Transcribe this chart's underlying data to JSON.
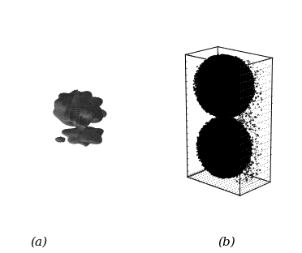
{
  "figsize": [
    3.72,
    3.12
  ],
  "dpi": 100,
  "background_color": "#ffffff",
  "label_a": "(a)",
  "label_b": "(b)",
  "label_fontsize": 11
}
